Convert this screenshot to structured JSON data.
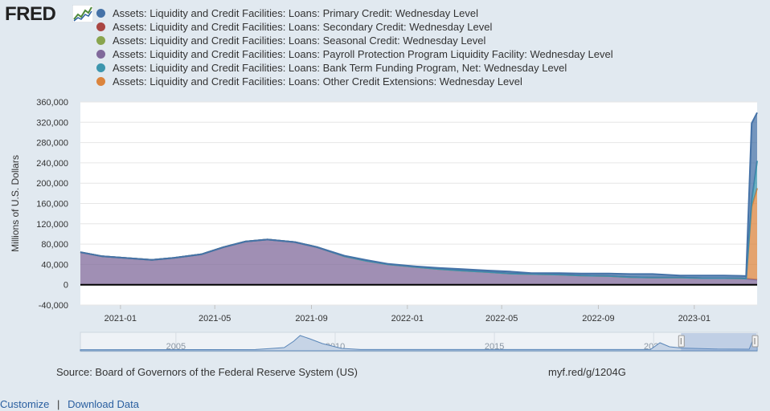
{
  "logo": {
    "text": "FRED"
  },
  "legend": [
    {
      "label": "Assets: Liquidity and Credit Facilities: Loans: Primary Credit: Wednesday Level",
      "color": "#4572a7"
    },
    {
      "label": "Assets: Liquidity and Credit Facilities: Loans: Secondary Credit: Wednesday Level",
      "color": "#aa4643"
    },
    {
      "label": "Assets: Liquidity and Credit Facilities: Loans: Seasonal Credit: Wednesday Level",
      "color": "#89a54e"
    },
    {
      "label": "Assets: Liquidity and Credit Facilities: Loans: Payroll Protection Program Liquidity Facility: Wednesday Level",
      "color": "#80699b"
    },
    {
      "label": "Assets: Liquidity and Credit Facilities: Loans: Bank Term Funding Program, Net: Wednesday Level",
      "color": "#3d96ae"
    },
    {
      "label": "Assets: Liquidity and Credit Facilities: Loans: Other Credit Extensions: Wednesday Level",
      "color": "#db843d"
    }
  ],
  "chart_data": {
    "type": "area",
    "stacked": true,
    "ylabel": "Millions of U.S. Dollars",
    "ylim": [
      -40000,
      360000
    ],
    "yticks": [
      "360,000",
      "320,000",
      "280,000",
      "240,000",
      "200,000",
      "160,000",
      "120,000",
      "80,000",
      "40,000",
      "0",
      "-40,000"
    ],
    "xticks": [
      "2021-01",
      "2021-05",
      "2021-09",
      "2022-01",
      "2022-05",
      "2022-09",
      "2023-01"
    ],
    "xlim": [
      "2020-11-11",
      "2023-03-22"
    ],
    "grid": true,
    "x": [
      "2020-11-11",
      "2020-12-09",
      "2021-01-13",
      "2021-02-10",
      "2021-03-10",
      "2021-04-14",
      "2021-05-12",
      "2021-06-09",
      "2021-07-07",
      "2021-08-11",
      "2021-09-08",
      "2021-10-13",
      "2021-11-10",
      "2021-12-08",
      "2022-01-12",
      "2022-02-09",
      "2022-03-09",
      "2022-04-13",
      "2022-05-11",
      "2022-06-08",
      "2022-07-13",
      "2022-08-10",
      "2022-09-14",
      "2022-10-12",
      "2022-11-09",
      "2022-12-14",
      "2023-01-11",
      "2023-02-08",
      "2023-03-01",
      "2023-03-08",
      "2023-03-15",
      "2023-03-22"
    ],
    "series": [
      {
        "name": "Assets: Liquidity and Credit Facilities: Loans: Payroll Protection Program Liquidity Facility: Wednesday Level",
        "color": "#80699b",
        "values": [
          64000,
          56000,
          52000,
          49000,
          53000,
          60000,
          74000,
          85000,
          89000,
          84000,
          74000,
          56000,
          47000,
          40000,
          35000,
          31000,
          28000,
          25000,
          22000,
          21000,
          20000,
          18000,
          17000,
          15000,
          14000,
          14000,
          13000,
          13000,
          12500,
          12000,
          11000,
          10000
        ]
      },
      {
        "name": "Assets: Liquidity and Credit Facilities: Loans: Secondary Credit: Wednesday Level",
        "color": "#aa4643",
        "values": [
          0,
          0,
          0,
          0,
          0,
          0,
          0,
          0,
          0,
          0,
          0,
          0,
          0,
          0,
          0,
          0,
          0,
          0,
          0,
          0,
          0,
          0,
          0,
          0,
          0,
          0,
          0,
          0,
          0,
          0,
          0,
          0
        ]
      },
      {
        "name": "Assets: Liquidity and Credit Facilities: Loans: Seasonal Credit: Wednesday Level",
        "color": "#89a54e",
        "values": [
          0,
          0,
          0,
          0,
          0,
          0,
          0,
          0,
          0,
          0,
          0,
          0,
          0,
          0,
          0,
          0,
          0,
          0,
          0,
          0,
          0,
          0,
          0,
          0,
          0,
          0,
          0,
          0,
          0,
          0,
          0,
          0
        ]
      },
      {
        "name": "Assets: Liquidity and Credit Facilities: Loans: Other Credit Extensions: Wednesday Level",
        "color": "#db843d",
        "values": [
          0,
          0,
          0,
          0,
          0,
          0,
          0,
          0,
          0,
          0,
          0,
          0,
          0,
          0,
          0,
          0,
          0,
          0,
          0,
          0,
          0,
          0,
          0,
          0,
          0,
          0,
          0,
          0,
          0,
          0,
          142000,
          180000
        ]
      },
      {
        "name": "Assets: Liquidity and Credit Facilities: Loans: Bank Term Funding Program, Net: Wednesday Level",
        "color": "#3d96ae",
        "values": [
          0,
          0,
          0,
          0,
          0,
          0,
          0,
          0,
          0,
          0,
          0,
          0,
          0,
          0,
          0,
          0,
          0,
          0,
          0,
          0,
          0,
          0,
          0,
          0,
          0,
          0,
          0,
          0,
          0,
          0,
          12000,
          54000
        ]
      },
      {
        "name": "Assets: Liquidity and Credit Facilities: Loans: Primary Credit: Wednesday Level",
        "color": "#4572a7",
        "values": [
          0,
          0,
          0,
          0,
          0,
          0,
          0,
          0,
          0,
          0,
          0,
          1000,
          1500,
          1000,
          1000,
          2000,
          3000,
          3000,
          4000,
          2000,
          3000,
          4000,
          5000,
          6000,
          7000,
          4000,
          5000,
          5000,
          5000,
          5000,
          153000,
          95000
        ]
      }
    ],
    "navigator": {
      "xticks": [
        "2005",
        "2010",
        "2015",
        "2020"
      ]
    }
  },
  "footer": {
    "source": "Source: Board of Governors of the Federal Reserve System (US)",
    "shortlink": "myf.red/g/1204G",
    "customize": "Customize",
    "separator": "|",
    "download": "Download Data"
  }
}
